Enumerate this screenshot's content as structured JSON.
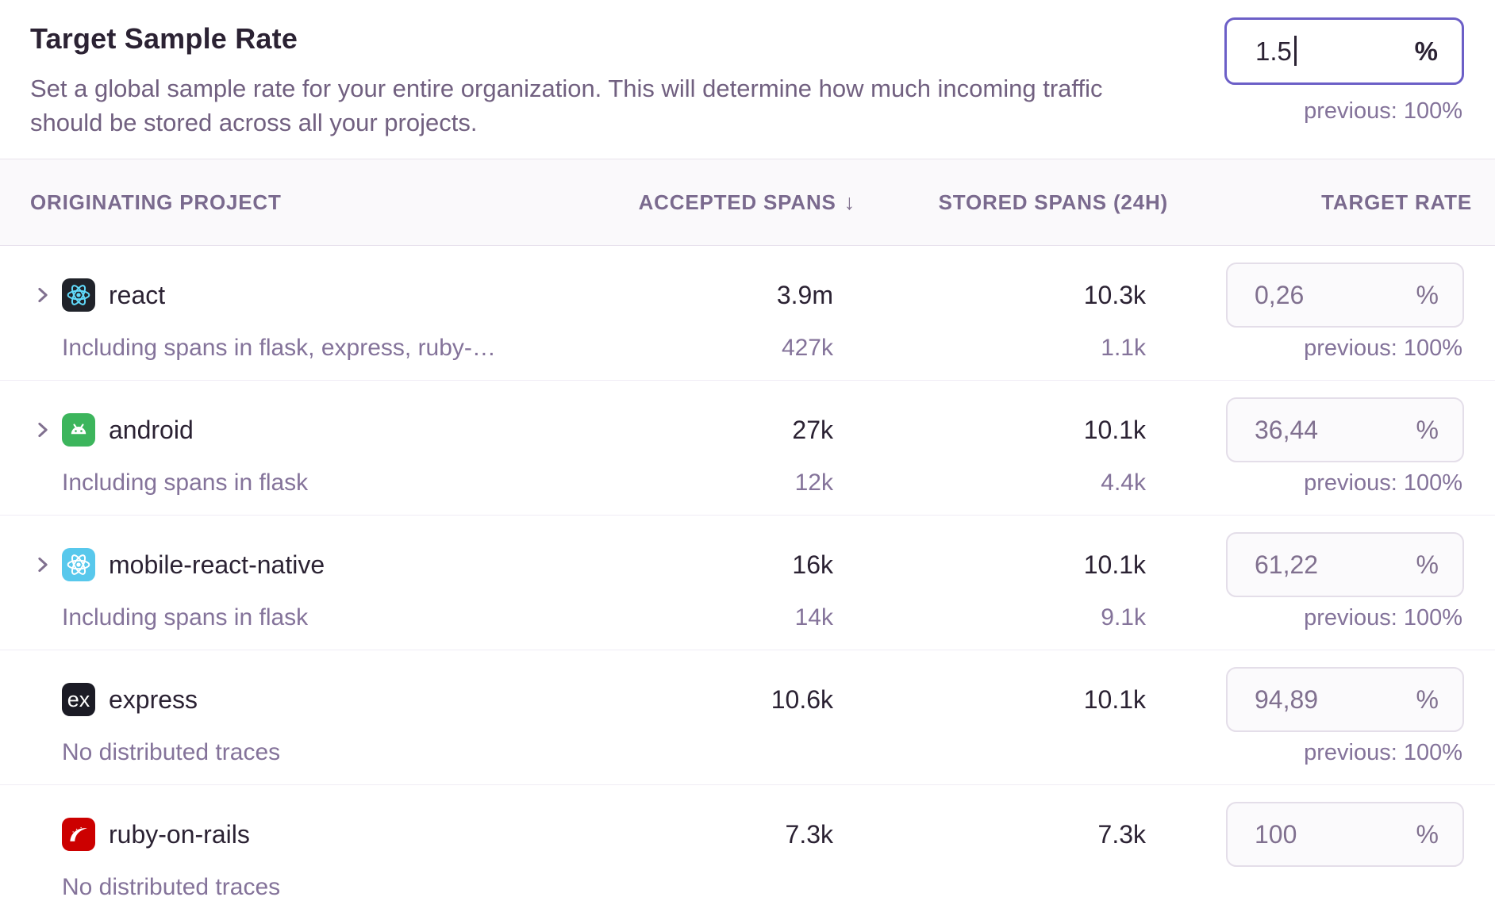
{
  "page": {
    "title": "Target Sample Rate",
    "description": "Set a global sample rate for your entire organization. This will determine how much incoming traffic should be stored across all your projects."
  },
  "global_rate_input": {
    "value": "1.5",
    "suffix": "%",
    "previous_label": "previous: 100%"
  },
  "table": {
    "columns": {
      "project": "ORIGINATING PROJECT",
      "accepted": "ACCEPTED SPANS",
      "stored": "STORED SPANS (24H)",
      "rate": "TARGET RATE"
    },
    "sort_icon": "↓",
    "rows": [
      {
        "platform": "react",
        "name": "react",
        "expandable": true,
        "note": "Including spans in flask, express, ruby-…",
        "accepted": "3.9m",
        "accepted_sub": "427k",
        "stored": "10.3k",
        "stored_sub": "1.1k",
        "rate": "0,26",
        "suffix": "%",
        "previous": "previous: 100%"
      },
      {
        "platform": "android",
        "name": "android",
        "expandable": true,
        "note": "Including spans in flask",
        "accepted": "27k",
        "accepted_sub": "12k",
        "stored": "10.1k",
        "stored_sub": "4.4k",
        "rate": "36,44",
        "suffix": "%",
        "previous": "previous: 100%"
      },
      {
        "platform": "react_native",
        "name": "mobile-react-native",
        "expandable": true,
        "note": "Including spans in flask",
        "accepted": "16k",
        "accepted_sub": "14k",
        "stored": "10.1k",
        "stored_sub": "9.1k",
        "rate": "61,22",
        "suffix": "%",
        "previous": "previous: 100%"
      },
      {
        "platform": "express",
        "name": "express",
        "expandable": false,
        "note": "No distributed traces",
        "accepted": "10.6k",
        "accepted_sub": "",
        "stored": "10.1k",
        "stored_sub": "",
        "rate": "94,89",
        "suffix": "%",
        "previous": "previous: 100%"
      },
      {
        "platform": "rails",
        "name": "ruby-on-rails",
        "expandable": false,
        "note": "No distributed traces",
        "accepted": "7.3k",
        "accepted_sub": "",
        "stored": "7.3k",
        "stored_sub": "",
        "rate": "100",
        "suffix": "%",
        "previous": ""
      }
    ]
  },
  "colors": {
    "accent": "#6C5FC7",
    "text_dark": "#2B2233",
    "text_muted": "#84739A",
    "header_text": "#7A6A8E",
    "band_bg": "#FAF9FB",
    "band_border": "#E7E1EC",
    "row_divider": "#F0ECF5",
    "box_bg": "#FBFAFC",
    "box_border": "#E4DEE9",
    "platforms": {
      "react": {
        "bg": "#20232A",
        "fg": "#61DAFB"
      },
      "android": {
        "bg": "#3CB55C",
        "fg": "#FFFFFF"
      },
      "react_native": {
        "bg": "#58C8EC",
        "fg": "#FFFFFF"
      },
      "express": {
        "bg": "#1B1B25",
        "fg": "#FFFFFF"
      },
      "rails": {
        "bg": "#CC0000",
        "fg": "#FFFFFF"
      }
    }
  }
}
